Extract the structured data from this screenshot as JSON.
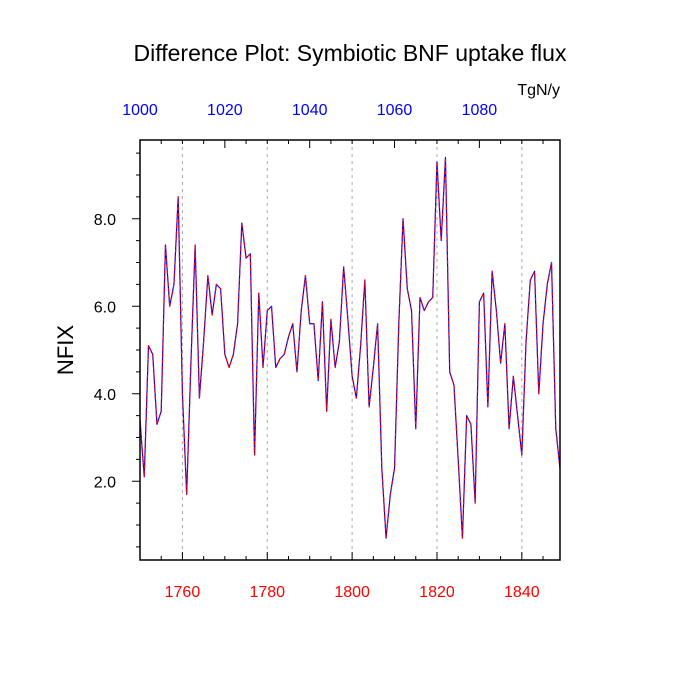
{
  "chart_data": {
    "type": "line",
    "title": "Difference Plot: Symbiotic BNF uptake flux",
    "units": "TgN/y",
    "ylabel": "NFIX",
    "xlim": [
      1750,
      1849
    ],
    "ylim": [
      0.2,
      9.8
    ],
    "top_xlim": [
      1000,
      1099
    ],
    "bottom_ticks": [
      1760,
      1780,
      1800,
      1820,
      1840
    ],
    "bottom_tick_labels": [
      "1760",
      "1780",
      "1800",
      "1820",
      "1840"
    ],
    "top_ticks": [
      1000,
      1020,
      1040,
      1060,
      1080
    ],
    "top_tick_labels": [
      "1000",
      "1020",
      "1040",
      "1060",
      "1080"
    ],
    "y_ticks": [
      2.0,
      4.0,
      6.0,
      8.0
    ],
    "y_tick_labels": [
      "2.0",
      "4.0",
      "6.0",
      "8.0"
    ],
    "vertical_grid": true,
    "colors": {
      "bottom_axis": "#ff0000",
      "top_axis": "#0000ff",
      "line_primary": "#0000ff",
      "line_secondary": "#ff0000",
      "frame": "#000000",
      "grid": "#aaaaaa"
    },
    "series": [
      {
        "x": [
          1750,
          1751,
          1752,
          1753,
          1754,
          1755,
          1756,
          1757,
          1758,
          1759,
          1760,
          1761,
          1762,
          1763,
          1764,
          1765,
          1766,
          1767,
          1768,
          1769,
          1770,
          1771,
          1772,
          1773,
          1774,
          1775,
          1776,
          1777,
          1778,
          1779,
          1780,
          1781,
          1782,
          1783,
          1784,
          1785,
          1786,
          1787,
          1788,
          1789,
          1790,
          1791,
          1792,
          1793,
          1794,
          1795,
          1796,
          1797,
          1798,
          1799,
          1800,
          1801,
          1802,
          1803,
          1804,
          1805,
          1806,
          1807,
          1808,
          1809,
          1810,
          1811,
          1812,
          1813,
          1814,
          1815,
          1816,
          1817,
          1818,
          1819,
          1820,
          1821,
          1822,
          1823,
          1824,
          1825,
          1826,
          1827,
          1828,
          1829,
          1830,
          1831,
          1832,
          1833,
          1834,
          1835,
          1836,
          1837,
          1838,
          1839,
          1840,
          1841,
          1842,
          1843,
          1844,
          1845,
          1846,
          1847,
          1848,
          1849
        ],
        "values": [
          3.4,
          2.1,
          5.1,
          4.9,
          3.3,
          3.6,
          7.4,
          6.0,
          6.5,
          8.5,
          4.0,
          1.7,
          4.7,
          7.4,
          3.9,
          5.2,
          6.7,
          5.8,
          6.5,
          6.4,
          4.9,
          4.6,
          4.9,
          5.6,
          7.9,
          7.1,
          7.2,
          2.6,
          6.3,
          4.6,
          5.9,
          6.0,
          4.6,
          4.8,
          4.9,
          5.3,
          5.6,
          4.5,
          5.9,
          6.7,
          5.6,
          5.6,
          4.3,
          6.1,
          3.6,
          5.7,
          4.6,
          5.2,
          6.9,
          5.7,
          4.4,
          3.9,
          5.1,
          6.6,
          3.7,
          4.6,
          5.6,
          2.3,
          0.7,
          1.7,
          2.3,
          5.6,
          8.0,
          6.4,
          5.9,
          3.2,
          6.2,
          5.9,
          6.1,
          6.2,
          9.3,
          7.5,
          9.4,
          4.5,
          4.2,
          2.5,
          0.7,
          3.5,
          3.3,
          1.5,
          6.1,
          6.3,
          3.7,
          6.8,
          5.9,
          4.7,
          5.6,
          3.2,
          4.4,
          3.5,
          2.6,
          5.2,
          6.6,
          6.8,
          4.0,
          5.6,
          6.5,
          7.0,
          3.2,
          2.3
        ]
      }
    ]
  }
}
